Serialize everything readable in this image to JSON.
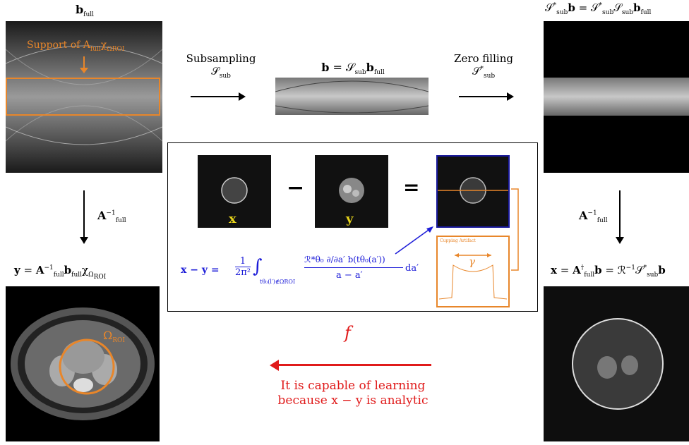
{
  "labels": {
    "b_full": "b",
    "b_full_sub": "full",
    "support_text": "Support of A",
    "support_sub": "full",
    "support_chi": "χ",
    "support_omega": "Ω",
    "support_roi": "ROI",
    "subsampling": "Subsampling",
    "s_sub": "𝒮",
    "s_sub_sub": "sub",
    "b_eq": "b = 𝒮",
    "b_eq_sub": "sub",
    "b_eq_b": "b",
    "b_eq_full": "full",
    "zero_filling": "Zero filling",
    "s_star": "𝒮",
    "s_star_sup": "*",
    "s_star_sub": "sub",
    "top_right_formula": "𝒮*sub b = 𝒮*sub 𝒮sub bfull",
    "a_inv_left": "A",
    "a_inv_sup": "−1",
    "a_inv_sub": "full",
    "y_formula": "y = A",
    "y_formula_rest": "b",
    "y_formula_full": "full",
    "y_formula_chi": "χ",
    "y_formula_omega": "Ω",
    "y_formula_roi": "ROI",
    "a_inv_right": "A",
    "x_formula": "x = A",
    "x_formula_dag": "†",
    "x_formula_full": "full",
    "x_formula_rest": "b = ℛ",
    "x_formula_inv": "−1",
    "x_formula_s": "𝒮",
    "x_formula_star": "*",
    "x_formula_sub": "sub",
    "x_formula_b": "b",
    "omega_roi": "Ω",
    "omega_roi_sub": "ROI",
    "panel_x": "x",
    "panel_y": "y",
    "minus": "−",
    "equals": "=",
    "cupping_artifact": "Cupping Artifact",
    "gamma": "γ",
    "formula_lhs": "x − y =",
    "formula_frac_num": "1",
    "formula_frac_den": "2π²",
    "formula_int": "∫",
    "formula_int_sub": "tθ₀(l′)∉ΩROI",
    "formula_num": "ℛ*θ₀ ∂/∂a′ b(tθ₀(a′))",
    "formula_den": "a − a′",
    "formula_da": "da′",
    "f_label": "f",
    "learning_line1": "It is capable of learning",
    "learning_line2": "because x − y is analytic"
  },
  "colors": {
    "orange": "#e8862a",
    "blue": "#1c1cd8",
    "red": "#e01b1b",
    "panel_border": "#1a1a9e"
  }
}
